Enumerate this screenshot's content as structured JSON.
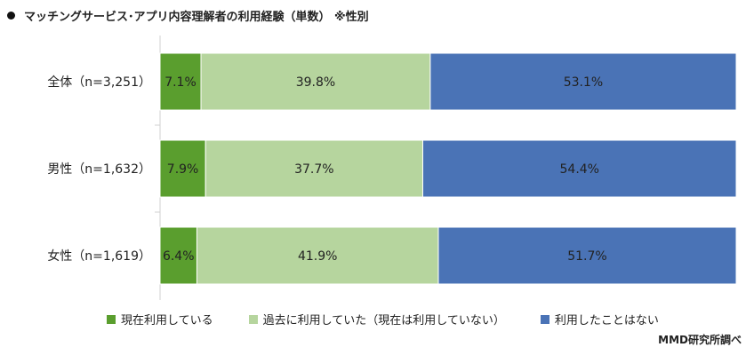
{
  "chart_data": {
    "type": "bar",
    "orientation": "horizontal",
    "stacked": true,
    "percent_stacked": true,
    "title": "マッチングサービス･アプリ内容理解者の利用経験（単数） ※性別",
    "categories": [
      "全体（n=3,251）",
      "男性（n=1,632）",
      "女性（n=1,619）"
    ],
    "series": [
      {
        "name": "現在利用している",
        "values": [
          7.1,
          7.9,
          6.4
        ],
        "labels": [
          "7.1%",
          "7.9%",
          "6.4%"
        ],
        "color": "#5a9e2e"
      },
      {
        "name": "過去に利用していた（現在は利用していない）",
        "values": [
          39.8,
          37.7,
          41.9
        ],
        "labels": [
          "39.8%",
          "37.7%",
          "41.9%"
        ],
        "color": "#b6d59e"
      },
      {
        "name": "利用したことはない",
        "values": [
          53.1,
          54.4,
          51.7
        ],
        "labels": [
          "53.1%",
          "54.4%",
          "51.7%"
        ],
        "color": "#4a73b6"
      }
    ],
    "xlim": [
      0,
      100
    ],
    "legend_position": "bottom",
    "grid": false
  },
  "source": "MMD研究所調べ"
}
